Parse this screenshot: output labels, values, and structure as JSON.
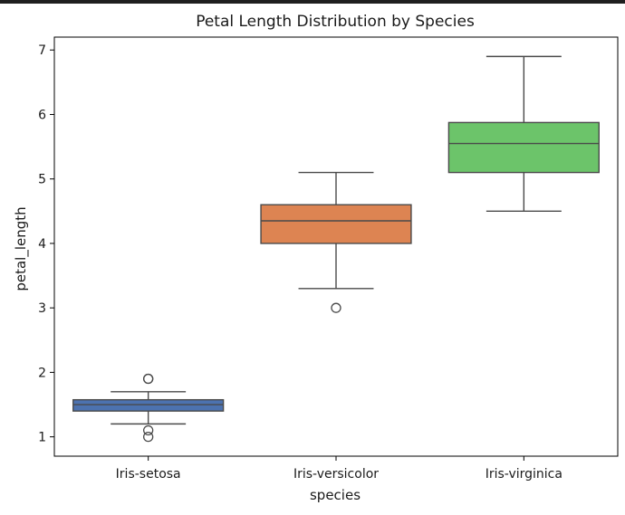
{
  "chart_data": {
    "type": "box",
    "title": "Petal Length Distribution by Species",
    "xlabel": "species",
    "ylabel": "petal_length",
    "ylim": [
      0.7,
      7.2
    ],
    "yticks": [
      1,
      2,
      3,
      4,
      5,
      6,
      7
    ],
    "categories": [
      "Iris-setosa",
      "Iris-versicolor",
      "Iris-virginica"
    ],
    "series": [
      {
        "category": "Iris-setosa",
        "color": "#4c72b0",
        "whisker_low": 1.2,
        "q1": 1.4,
        "median": 1.5,
        "q3": 1.575,
        "whisker_high": 1.7,
        "outliers": [
          1.9,
          1.9,
          1.1,
          1.0
        ]
      },
      {
        "category": "Iris-versicolor",
        "color": "#dd8452",
        "whisker_low": 3.3,
        "q1": 4.0,
        "median": 4.35,
        "q3": 4.6,
        "whisker_high": 5.1,
        "outliers": [
          3.0
        ]
      },
      {
        "category": "Iris-virginica",
        "color": "#6cc46a",
        "whisker_low": 4.5,
        "q1": 5.1,
        "median": 5.55,
        "q3": 5.875,
        "whisker_high": 6.9,
        "outliers": []
      }
    ],
    "grid": false,
    "legend": "none"
  }
}
